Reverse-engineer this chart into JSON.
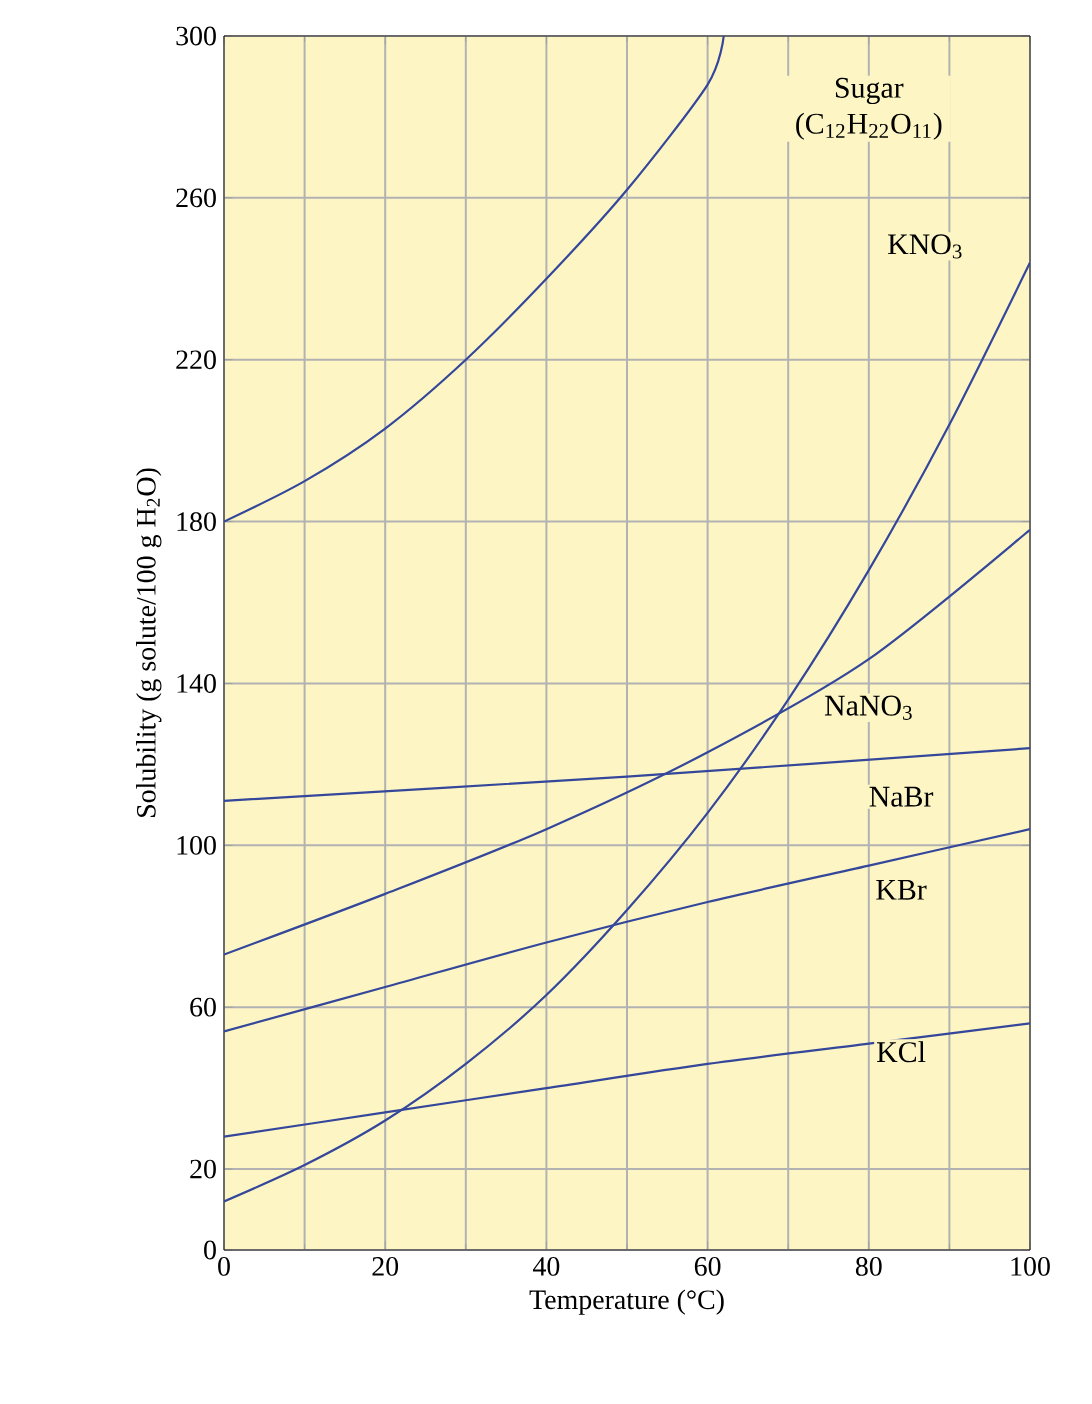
{
  "chart_data": {
    "type": "line",
    "xlabel": "Temperature (°C)",
    "ylabel": "Solubility (g solute/100 g H$_{2}$O)",
    "series": [
      {
        "name": "Sugar (C$_{12}$H$_{22}$O$_{11}$)",
        "color": "#34479a",
        "x": [
          0,
          10,
          20,
          30,
          40,
          50,
          60,
          62
        ],
        "values": [
          180,
          190,
          203,
          220,
          240,
          262,
          288,
          300
        ]
      },
      {
        "name": "KNO$_{3}$",
        "color": "#34479a",
        "x": [
          0,
          10,
          20,
          30,
          40,
          50,
          60,
          70,
          80,
          90,
          100
        ],
        "values": [
          12,
          21,
          32,
          46,
          63,
          84,
          108,
          136,
          168,
          204,
          244
        ]
      },
      {
        "name": "NaNO$_{3}$",
        "color": "#34479a",
        "x": [
          0,
          20,
          40,
          60,
          80,
          100
        ],
        "values": [
          73,
          88,
          104,
          123,
          146,
          178
        ]
      },
      {
        "name": "NaBr",
        "color": "#34479a",
        "x": [
          0,
          50,
          100
        ],
        "values": [
          111,
          117,
          124
        ]
      },
      {
        "name": "KBr",
        "color": "#34479a",
        "x": [
          0,
          20,
          40,
          60,
          80,
          100
        ],
        "values": [
          54,
          65,
          76,
          86,
          95,
          104
        ]
      },
      {
        "name": "KCl",
        "color": "#34479a",
        "x": [
          0,
          20,
          40,
          60,
          80,
          100
        ],
        "values": [
          28,
          34,
          40,
          46,
          51,
          56
        ]
      }
    ],
    "xlim": [
      0,
      100
    ],
    "ylim": [
      0,
      300
    ],
    "xticks": [
      0,
      20,
      40,
      60,
      80,
      100
    ],
    "yticks": [
      0,
      20,
      60,
      100,
      140,
      180,
      220,
      260,
      300
    ],
    "grid": true,
    "marker": "none",
    "line_style": "solid"
  }
}
